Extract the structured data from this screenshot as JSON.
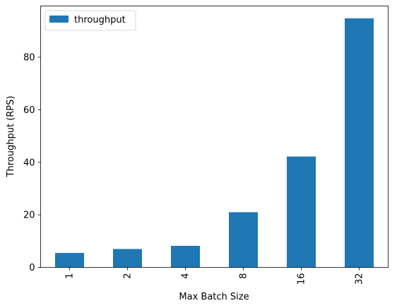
{
  "chart_data": {
    "type": "bar",
    "categories": [
      "1",
      "2",
      "4",
      "8",
      "16",
      "32"
    ],
    "series": [
      {
        "name": "throughput",
        "values": [
          5.5,
          7.0,
          8.2,
          21.0,
          42.2,
          94.8
        ]
      }
    ],
    "xlabel": "Max Batch Size",
    "ylabel": "Throughput (RPS)",
    "ylim": [
      0,
      99.5
    ],
    "yticks": [
      0,
      20,
      40,
      60,
      80
    ],
    "legend_position": "top-left",
    "grid": false,
    "bar_color": "#1f77b4"
  }
}
